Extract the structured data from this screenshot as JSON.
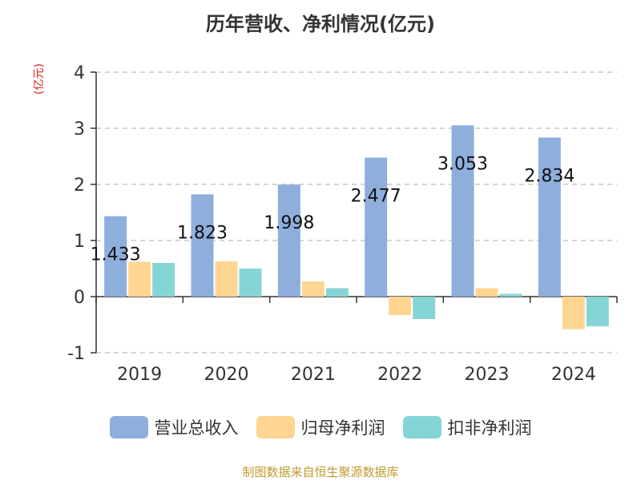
{
  "chart_data": {
    "type": "bar",
    "title": "历年营收、净利情况(亿元)",
    "ylabel": "(亿元)",
    "categories": [
      "2019",
      "2020",
      "2021",
      "2022",
      "2023",
      "2024"
    ],
    "series": [
      {
        "name": "营业总收入",
        "color": "#8eaedc",
        "values": [
          1.433,
          1.823,
          1.998,
          2.477,
          3.053,
          2.834
        ],
        "show_labels": true
      },
      {
        "name": "归母净利润",
        "color": "#ffd592",
        "values": [
          0.62,
          0.63,
          0.27,
          -0.33,
          0.15,
          -0.58
        ],
        "show_labels": false
      },
      {
        "name": "扣非净利润",
        "color": "#86d5d6",
        "values": [
          0.6,
          0.5,
          0.15,
          -0.4,
          0.05,
          -0.53
        ],
        "show_labels": false
      }
    ],
    "ylim": [
      -1,
      4
    ],
    "yticks": [
      -1,
      0,
      1,
      2,
      3,
      4
    ],
    "grid": true,
    "legend_position": "bottom"
  },
  "source": "制图数据来自恒生聚源数据库"
}
